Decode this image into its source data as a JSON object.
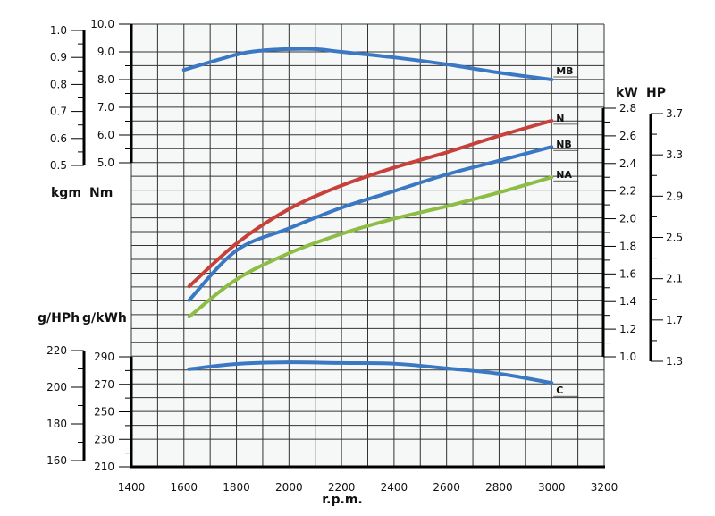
{
  "chart_data": {
    "type": "line",
    "x": [
      1620,
      1800,
      2000,
      2200,
      2400,
      2600,
      2800,
      3000
    ],
    "xlabel": "r.p.m.",
    "xlim": [
      1400,
      3200
    ],
    "xticks": [
      "1400",
      "1600",
      "1800",
      "2000",
      "2200",
      "2400",
      "2600",
      "2800",
      "3000",
      "3200"
    ],
    "grid": true,
    "axes": {
      "torque_nm": {
        "unit": "Nm",
        "range": [
          5.0,
          10.0
        ],
        "ticks": [
          "5.0",
          "6.0",
          "7.0",
          "8.0",
          "9.0",
          "10.0"
        ]
      },
      "torque_kgm": {
        "unit": "kgm",
        "range": [
          0.5,
          1.0
        ],
        "ticks": [
          "0.5",
          "0.6",
          "0.7",
          "0.8",
          "0.9",
          "1.0"
        ]
      },
      "power_kw": {
        "unit": "kW",
        "range": [
          1.0,
          2.8
        ],
        "ticks": [
          "1.0",
          "1.2",
          "1.4",
          "1.6",
          "1.8",
          "2.0",
          "2.2",
          "2.4",
          "2.6",
          "2.8"
        ]
      },
      "power_hp": {
        "unit": "HP",
        "range": [
          1.3,
          3.7
        ],
        "ticks": [
          "1.3",
          "1.7",
          "2.1",
          "2.5",
          "2.9",
          "3.3",
          "3.7"
        ]
      },
      "fuel_gkwh": {
        "unit": "g/kWh",
        "range": [
          210,
          290
        ],
        "ticks": [
          "210",
          "230",
          "250",
          "270",
          "290"
        ]
      },
      "fuel_ghph": {
        "unit": "g/HPh",
        "range": [
          160,
          220
        ],
        "ticks": [
          "160",
          "180",
          "200",
          "220"
        ]
      }
    },
    "series": [
      {
        "name": "MB",
        "axis": "torque_nm",
        "color": "#3b78c3",
        "x": [
          1600,
          1800,
          1900,
          2000,
          2100,
          2200,
          2400,
          2600,
          2800,
          3000
        ],
        "values": [
          8.35,
          8.9,
          9.05,
          9.1,
          9.1,
          9.0,
          8.8,
          8.55,
          8.25,
          8.0
        ]
      },
      {
        "name": "N",
        "axis": "power_kw",
        "color": "#c8403a",
        "x": [
          1620,
          1800,
          2000,
          2200,
          2400,
          2600,
          2800,
          3000
        ],
        "values": [
          1.51,
          1.82,
          2.07,
          2.24,
          2.37,
          2.48,
          2.6,
          2.71
        ]
      },
      {
        "name": "NB",
        "axis": "power_kw",
        "color": "#3b78c3",
        "x": [
          1620,
          1800,
          2000,
          2200,
          2400,
          2600,
          2800,
          3000
        ],
        "values": [
          1.41,
          1.77,
          1.93,
          2.08,
          2.2,
          2.32,
          2.42,
          2.52
        ]
      },
      {
        "name": "NA",
        "axis": "power_kw",
        "color": "#8dbd45",
        "x": [
          1620,
          1800,
          2000,
          2200,
          2400,
          2600,
          2800,
          3000
        ],
        "values": [
          1.29,
          1.56,
          1.75,
          1.89,
          2.0,
          2.09,
          2.19,
          2.3
        ]
      },
      {
        "name": "C",
        "axis": "fuel_gkwh",
        "color": "#3b78c3",
        "x": [
          1620,
          1800,
          2000,
          2200,
          2400,
          2600,
          2800,
          3000
        ],
        "values": [
          281,
          284.8,
          286,
          285.5,
          285,
          281.6,
          277.7,
          271
        ]
      }
    ]
  }
}
